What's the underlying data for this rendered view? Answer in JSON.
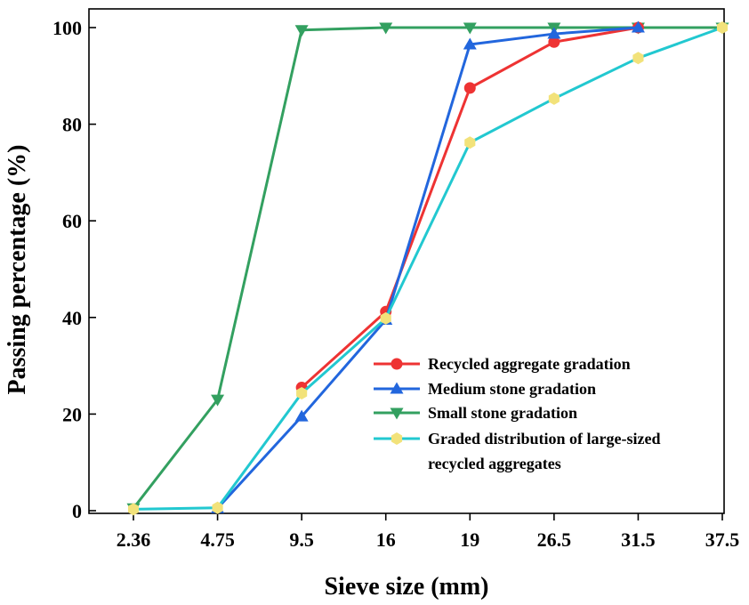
{
  "chart_data": {
    "type": "line",
    "categories": [
      "2.36",
      "4.75",
      "9.5",
      "16",
      "19",
      "26.5",
      "31.5",
      "37.5"
    ],
    "xlabel": "Sieve size (mm)",
    "ylabel": "Passing percentage (%)",
    "ylim": [
      0,
      100
    ],
    "yticks": [
      "0",
      "20",
      "40",
      "60",
      "80",
      "100"
    ],
    "grid": false,
    "legend_position": "bottom-right",
    "series": [
      {
        "name": "Recycled aggregate gradation",
        "color": "#ee3333",
        "marker": "circle",
        "values": [
          null,
          null,
          25.5,
          41.2,
          87.5,
          97.0,
          100.0,
          null
        ]
      },
      {
        "name": "Medium stone gradation",
        "color": "#2266dd",
        "marker": "triangle-up",
        "values": [
          null,
          0.5,
          19.5,
          39.5,
          96.5,
          98.7,
          100.0,
          null
        ]
      },
      {
        "name": "Small stone gradation",
        "color": "#33a060",
        "marker": "triangle-down",
        "values": [
          0.5,
          23.0,
          99.5,
          100.0,
          100.0,
          100.0,
          100.0,
          100.0
        ]
      },
      {
        "name": "Graded distribution of large-sized recycled aggregates",
        "legend_lines": [
          "Graded distribution of large-sized",
          "recycled aggregates"
        ],
        "color": "#22c8d0",
        "marker_color": "#f2e27a",
        "marker": "hexagon",
        "values": [
          0.3,
          0.6,
          24.3,
          39.8,
          76.2,
          85.3,
          93.7,
          100.0
        ]
      }
    ]
  }
}
